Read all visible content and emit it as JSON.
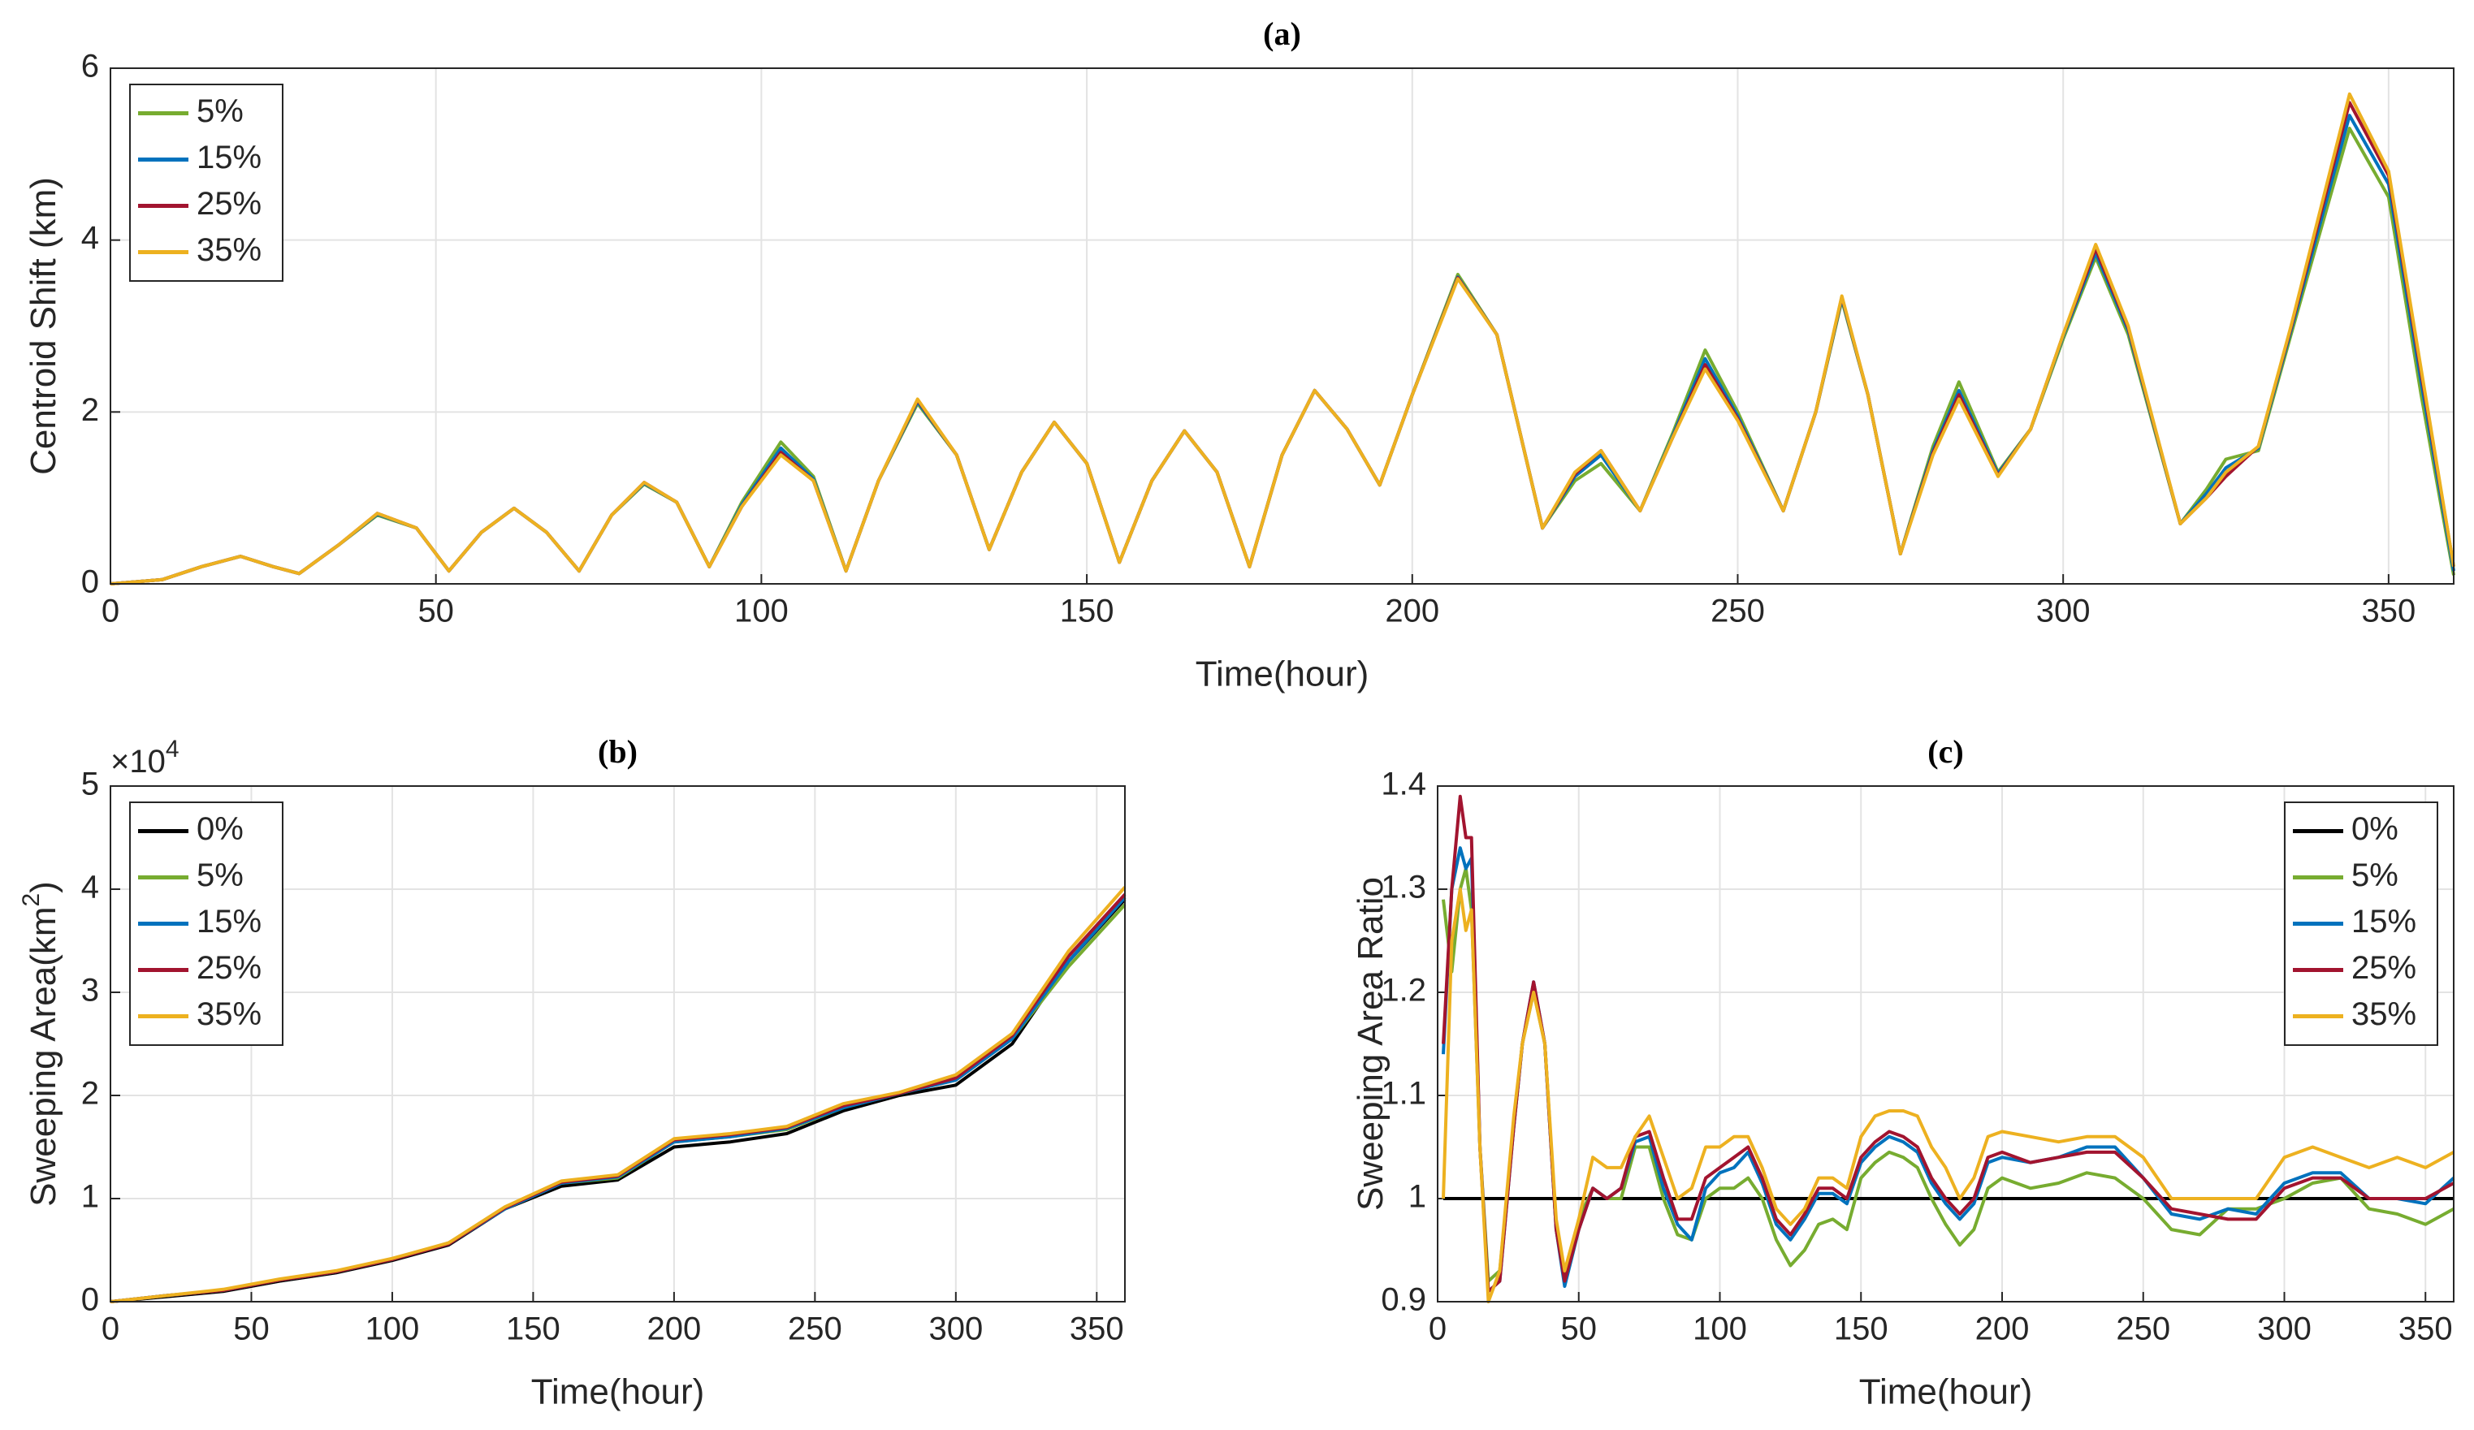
{
  "chart_data": [
    {
      "type": "line",
      "title": "(a)",
      "xlabel": "Time(hour)",
      "ylabel": "Centroid Shift (km)",
      "xlim": [
        0,
        360
      ],
      "ylim": [
        0,
        6
      ],
      "xticks": [
        0,
        50,
        100,
        150,
        200,
        250,
        300,
        350
      ],
      "yticks": [
        0,
        2,
        4,
        6
      ],
      "grid": true,
      "legend": "upper left",
      "x": [
        0,
        8,
        14,
        20,
        25,
        29,
        35,
        41,
        47,
        52,
        57,
        62,
        67,
        72,
        77,
        82,
        87,
        92,
        97,
        103,
        108,
        113,
        118,
        124,
        130,
        135,
        140,
        145,
        150,
        155,
        160,
        165,
        170,
        175,
        180,
        185,
        190,
        195,
        200,
        207,
        213,
        220,
        225,
        229,
        235,
        240,
        245,
        250,
        257,
        262,
        266,
        270,
        275,
        280,
        284,
        290,
        295,
        300,
        305,
        310,
        318,
        322,
        325,
        330,
        335,
        344,
        350,
        355,
        360
      ],
      "series": [
        {
          "name": "5%",
          "color": "#77ac30",
          "values": [
            0,
            0.05,
            0.2,
            0.32,
            0.2,
            0.12,
            0.45,
            0.8,
            0.65,
            0.15,
            0.6,
            0.88,
            0.6,
            0.15,
            0.8,
            1.16,
            0.95,
            0.2,
            0.95,
            1.65,
            1.25,
            0.15,
            1.2,
            2.1,
            1.5,
            0.4,
            1.3,
            1.88,
            1.4,
            0.25,
            1.2,
            1.78,
            1.3,
            0.2,
            1.5,
            2.25,
            1.8,
            1.15,
            2.2,
            3.6,
            2.9,
            0.65,
            1.2,
            1.4,
            0.85,
            1.75,
            2.72,
            2.0,
            0.85,
            2.0,
            3.3,
            2.2,
            0.35,
            1.6,
            2.35,
            1.3,
            1.8,
            2.85,
            3.8,
            2.9,
            0.7,
            1.1,
            1.45,
            1.55,
            2.9,
            5.3,
            4.5,
            2.2,
            0.1
          ]
        },
        {
          "name": "15%",
          "color": "#0072bd",
          "values": [
            0,
            0.05,
            0.2,
            0.32,
            0.2,
            0.12,
            0.45,
            0.81,
            0.65,
            0.15,
            0.6,
            0.88,
            0.6,
            0.15,
            0.8,
            1.17,
            0.95,
            0.2,
            0.92,
            1.58,
            1.22,
            0.15,
            1.2,
            2.12,
            1.5,
            0.4,
            1.3,
            1.88,
            1.4,
            0.25,
            1.2,
            1.78,
            1.3,
            0.2,
            1.5,
            2.25,
            1.8,
            1.15,
            2.2,
            3.57,
            2.9,
            0.65,
            1.25,
            1.5,
            0.85,
            1.72,
            2.62,
            1.95,
            0.85,
            2.0,
            3.32,
            2.2,
            0.35,
            1.55,
            2.25,
            1.28,
            1.8,
            2.88,
            3.85,
            2.95,
            0.7,
            1.05,
            1.35,
            1.58,
            2.95,
            5.45,
            4.65,
            2.35,
            0.15
          ]
        },
        {
          "name": "25%",
          "color": "#a2142f",
          "values": [
            0,
            0.05,
            0.2,
            0.32,
            0.2,
            0.12,
            0.45,
            0.82,
            0.65,
            0.15,
            0.6,
            0.88,
            0.6,
            0.15,
            0.8,
            1.18,
            0.95,
            0.2,
            0.9,
            1.53,
            1.2,
            0.15,
            1.2,
            2.14,
            1.5,
            0.4,
            1.3,
            1.88,
            1.4,
            0.25,
            1.2,
            1.78,
            1.3,
            0.2,
            1.5,
            2.25,
            1.8,
            1.15,
            2.2,
            3.56,
            2.9,
            0.65,
            1.28,
            1.55,
            0.85,
            1.7,
            2.55,
            1.92,
            0.85,
            2.0,
            3.34,
            2.2,
            0.35,
            1.52,
            2.2,
            1.26,
            1.8,
            2.9,
            3.9,
            2.98,
            0.7,
            1.0,
            1.25,
            1.6,
            2.98,
            5.6,
            4.75,
            2.45,
            0.2
          ]
        },
        {
          "name": "35%",
          "color": "#edb120",
          "values": [
            0,
            0.05,
            0.2,
            0.32,
            0.2,
            0.12,
            0.45,
            0.82,
            0.65,
            0.15,
            0.6,
            0.88,
            0.6,
            0.15,
            0.8,
            1.18,
            0.95,
            0.2,
            0.9,
            1.5,
            1.2,
            0.15,
            1.2,
            2.15,
            1.5,
            0.4,
            1.3,
            1.88,
            1.4,
            0.25,
            1.2,
            1.78,
            1.3,
            0.2,
            1.5,
            2.25,
            1.8,
            1.15,
            2.2,
            3.55,
            2.9,
            0.65,
            1.3,
            1.55,
            0.85,
            1.7,
            2.5,
            1.9,
            0.85,
            2.0,
            3.35,
            2.2,
            0.35,
            1.5,
            2.15,
            1.25,
            1.8,
            2.9,
            3.95,
            3.0,
            0.7,
            1.0,
            1.3,
            1.6,
            3.0,
            5.7,
            4.8,
            2.5,
            0.2
          ]
        }
      ]
    },
    {
      "type": "line",
      "title": "(b)",
      "xlabel": "Time(hour)",
      "ylabel": "Sweeping Area(km",
      "ylabel_sup": "2",
      "ylabel_end": ")",
      "y_multiplier": "×10",
      "y_multiplier_exponent": "4",
      "xlim": [
        0,
        360
      ],
      "ylim": [
        0,
        5
      ],
      "xticks": [
        0,
        50,
        100,
        150,
        200,
        250,
        300,
        350
      ],
      "yticks": [
        0,
        1,
        2,
        3,
        4,
        5
      ],
      "grid": true,
      "legend": "upper left",
      "x": [
        0,
        20,
        40,
        60,
        80,
        100,
        120,
        140,
        160,
        180,
        200,
        220,
        240,
        260,
        280,
        300,
        320,
        340,
        360
      ],
      "series": [
        {
          "name": "0%",
          "color": "#000000",
          "values": [
            0,
            0.05,
            0.1,
            0.2,
            0.28,
            0.4,
            0.55,
            0.9,
            1.12,
            1.18,
            1.5,
            1.55,
            1.63,
            1.85,
            2.0,
            2.1,
            2.5,
            3.3,
            3.9
          ]
        },
        {
          "name": "5%",
          "color": "#77ac30",
          "values": [
            0,
            0.06,
            0.11,
            0.21,
            0.29,
            0.41,
            0.57,
            0.9,
            1.15,
            1.2,
            1.55,
            1.6,
            1.67,
            1.88,
            2.02,
            2.15,
            2.55,
            3.25,
            3.85
          ]
        },
        {
          "name": "15%",
          "color": "#0072bd",
          "values": [
            0,
            0.06,
            0.11,
            0.21,
            0.29,
            0.41,
            0.56,
            0.9,
            1.15,
            1.21,
            1.55,
            1.6,
            1.68,
            1.88,
            2.02,
            2.15,
            2.55,
            3.3,
            3.92
          ]
        },
        {
          "name": "25%",
          "color": "#a2142f",
          "values": [
            0,
            0.06,
            0.11,
            0.21,
            0.29,
            0.41,
            0.56,
            0.91,
            1.16,
            1.22,
            1.57,
            1.62,
            1.69,
            1.9,
            2.02,
            2.17,
            2.58,
            3.35,
            3.95
          ]
        },
        {
          "name": "35%",
          "color": "#edb120",
          "values": [
            0,
            0.06,
            0.12,
            0.22,
            0.3,
            0.42,
            0.57,
            0.92,
            1.17,
            1.23,
            1.58,
            1.63,
            1.7,
            1.92,
            2.03,
            2.2,
            2.6,
            3.4,
            4.02
          ]
        }
      ]
    },
    {
      "type": "line",
      "title": "(c)",
      "xlabel": "Time(hour)",
      "ylabel": "Sweeping Area Ratio",
      "xlim": [
        0,
        360
      ],
      "ylim": [
        0.9,
        1.4
      ],
      "xticks": [
        0,
        50,
        100,
        150,
        200,
        250,
        300,
        350
      ],
      "yticks": [
        0.9,
        1,
        1.1,
        1.2,
        1.3,
        1.4
      ],
      "grid": true,
      "legend": "upper right",
      "x": [
        2,
        5,
        8,
        10,
        12,
        15,
        18,
        22,
        27,
        30,
        34,
        38,
        42,
        45,
        50,
        55,
        60,
        65,
        70,
        75,
        80,
        85,
        90,
        95,
        100,
        105,
        110,
        115,
        120,
        125,
        130,
        135,
        140,
        145,
        150,
        155,
        160,
        165,
        170,
        175,
        180,
        185,
        190,
        195,
        200,
        210,
        220,
        230,
        240,
        250,
        260,
        270,
        280,
        290,
        300,
        310,
        320,
        330,
        340,
        350,
        360
      ],
      "series": [
        {
          "name": "0%",
          "color": "#000000",
          "values": [
            1,
            1,
            1,
            1,
            1,
            1,
            1,
            1,
            1,
            1,
            1,
            1,
            1,
            1,
            1,
            1,
            1,
            1,
            1,
            1,
            1,
            1,
            1,
            1,
            1,
            1,
            1,
            1,
            1,
            1,
            1,
            1,
            1,
            1,
            1,
            1,
            1,
            1,
            1,
            1,
            1,
            1,
            1,
            1,
            1,
            1,
            1,
            1,
            1,
            1,
            1,
            1,
            1,
            1,
            1,
            1,
            1,
            1,
            1,
            1,
            1
          ]
        },
        {
          "name": "5%",
          "color": "#77ac30",
          "values": [
            1.29,
            1.22,
            1.3,
            1.32,
            1.28,
            1.05,
            0.92,
            0.93,
            1.07,
            1.15,
            1.2,
            1.15,
            0.97,
            0.92,
            0.98,
            1.01,
            1.0,
            1.0,
            1.05,
            1.05,
            1.0,
            0.965,
            0.96,
            1.0,
            1.01,
            1.01,
            1.02,
            1.0,
            0.96,
            0.935,
            0.95,
            0.975,
            0.98,
            0.97,
            1.02,
            1.035,
            1.045,
            1.04,
            1.03,
            1.0,
            0.975,
            0.955,
            0.97,
            1.01,
            1.02,
            1.01,
            1.015,
            1.025,
            1.02,
            1.0,
            0.97,
            0.965,
            0.99,
            0.99,
            1.0,
            1.015,
            1.02,
            0.99,
            0.985,
            0.975,
            0.99
          ]
        },
        {
          "name": "15%",
          "color": "#0072bd",
          "values": [
            1.14,
            1.3,
            1.34,
            1.32,
            1.33,
            1.05,
            0.91,
            0.92,
            1.07,
            1.15,
            1.21,
            1.15,
            0.97,
            0.915,
            0.97,
            1.01,
            1.0,
            1.01,
            1.055,
            1.06,
            1.01,
            0.975,
            0.96,
            1.01,
            1.025,
            1.03,
            1.045,
            1.015,
            0.975,
            0.96,
            0.98,
            1.005,
            1.005,
            0.995,
            1.035,
            1.05,
            1.06,
            1.055,
            1.045,
            1.015,
            0.995,
            0.98,
            0.995,
            1.035,
            1.04,
            1.035,
            1.04,
            1.05,
            1.05,
            1.02,
            0.985,
            0.98,
            0.99,
            0.985,
            1.015,
            1.025,
            1.025,
            1.0,
            1.0,
            0.995,
            1.02
          ]
        },
        {
          "name": "25%",
          "color": "#a2142f",
          "values": [
            1.15,
            1.3,
            1.39,
            1.35,
            1.35,
            1.05,
            0.91,
            0.92,
            1.07,
            1.15,
            1.21,
            1.15,
            0.97,
            0.92,
            0.97,
            1.01,
            1.0,
            1.01,
            1.06,
            1.065,
            1.02,
            0.98,
            0.98,
            1.02,
            1.03,
            1.04,
            1.05,
            1.02,
            0.98,
            0.965,
            0.985,
            1.01,
            1.01,
            1.0,
            1.04,
            1.055,
            1.065,
            1.06,
            1.05,
            1.02,
            1.0,
            0.985,
            1.0,
            1.04,
            1.045,
            1.035,
            1.04,
            1.045,
            1.045,
            1.02,
            0.99,
            0.985,
            0.98,
            0.98,
            1.01,
            1.02,
            1.02,
            1.0,
            1.0,
            1.0,
            1.015
          ]
        },
        {
          "name": "35%",
          "color": "#edb120",
          "values": [
            1.0,
            1.25,
            1.3,
            1.26,
            1.28,
            1.05,
            0.9,
            0.93,
            1.08,
            1.15,
            1.2,
            1.15,
            0.98,
            0.93,
            0.98,
            1.04,
            1.03,
            1.03,
            1.06,
            1.08,
            1.04,
            1.0,
            1.01,
            1.05,
            1.05,
            1.06,
            1.06,
            1.03,
            0.99,
            0.975,
            0.99,
            1.02,
            1.02,
            1.01,
            1.06,
            1.08,
            1.085,
            1.085,
            1.08,
            1.05,
            1.03,
            1.0,
            1.02,
            1.06,
            1.065,
            1.06,
            1.055,
            1.06,
            1.06,
            1.04,
            1.0,
            1.0,
            1.0,
            1.0,
            1.04,
            1.05,
            1.04,
            1.03,
            1.04,
            1.03,
            1.045
          ]
        }
      ]
    }
  ]
}
